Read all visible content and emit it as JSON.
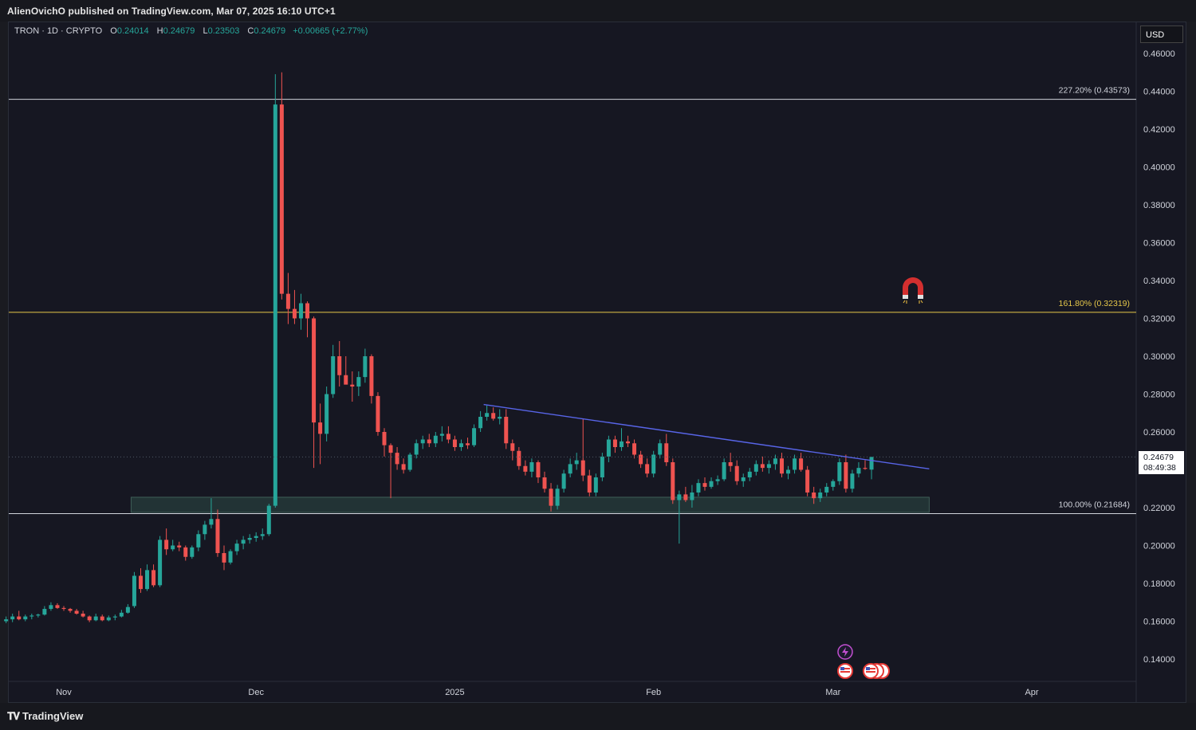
{
  "header": {
    "published": "AlienOvichO published on TradingView.com, Mar 07, 2025 16:10 UTC+1"
  },
  "legend": {
    "symbol": "TRON · 1D · CRYPTO",
    "o_label": "O",
    "o_value": "0.24014",
    "h_label": "H",
    "h_value": "0.24679",
    "l_label": "L",
    "l_value": "0.23503",
    "c_label": "C",
    "c_value": "0.24679",
    "change": "+0.00665 (+2.77%)"
  },
  "currency": "USD",
  "last_price": {
    "price": "0.24679",
    "countdown": "08:49:38"
  },
  "footer": {
    "brand": "TradingView"
  },
  "colors": {
    "up": "#26a69a",
    "down": "#ef5350",
    "fib_main": "#e6c84a",
    "fib_other": "#d1d4dc",
    "trendline": "#5865e8",
    "zone": "#2e4a45"
  },
  "icons": [
    "magnet-icon",
    "lightning-icon",
    "us-flag-icon"
  ],
  "chart_data": {
    "type": "candlestick",
    "y_axis": {
      "min": 0.13,
      "max": 0.465,
      "ticks": [
        "0.14000",
        "0.16000",
        "0.18000",
        "0.20000",
        "0.22000",
        "0.24000",
        "0.26000",
        "0.28000",
        "0.30000",
        "0.32000",
        "0.34000",
        "0.36000",
        "0.38000",
        "0.40000",
        "0.42000",
        "0.44000",
        "0.46000"
      ]
    },
    "x_axis": {
      "labels": [
        {
          "text": "Nov",
          "day": 0
        },
        {
          "text": "Dec",
          "day": 30
        },
        {
          "text": "2025",
          "day": 61
        },
        {
          "text": "Feb",
          "day": 92
        },
        {
          "text": "Mar",
          "day": 120
        },
        {
          "text": "Apr",
          "day": 151
        }
      ]
    },
    "fib_levels": [
      {
        "label": "227.20% (0.43573)",
        "value": 0.43573,
        "color": "#d1d4dc"
      },
      {
        "label": "161.80% (0.32319)",
        "value": 0.32319,
        "color": "#e6c84a"
      },
      {
        "label": "100.00% (0.21684)",
        "value": 0.21684,
        "color": "#d1d4dc"
      }
    ],
    "support_zone": {
      "from_day": 10.5,
      "to_day": 135,
      "low": 0.2175,
      "high": 0.2255
    },
    "trendline": {
      "from_day": 65.5,
      "from_value": 0.2745,
      "to_day": 135,
      "to_value": 0.2405
    },
    "last_price_value": 0.24679,
    "candles": [
      [
        -9,
        0.16,
        0.1625,
        0.159,
        0.161
      ],
      [
        -8,
        0.161,
        0.164,
        0.1595,
        0.1625
      ],
      [
        -7,
        0.1625,
        0.1655,
        0.1605,
        0.161
      ],
      [
        -6,
        0.161,
        0.1635,
        0.16,
        0.1625
      ],
      [
        -5,
        0.1625,
        0.164,
        0.161,
        0.163
      ],
      [
        -4,
        0.163,
        0.164,
        0.162,
        0.1635
      ],
      [
        -3,
        0.1635,
        0.168,
        0.163,
        0.1665
      ],
      [
        -2,
        0.1665,
        0.17,
        0.1655,
        0.1685
      ],
      [
        -1,
        0.1685,
        0.1695,
        0.1665,
        0.167
      ],
      [
        0,
        0.167,
        0.168,
        0.1655,
        0.1665
      ],
      [
        1,
        0.1665,
        0.167,
        0.1645,
        0.1655
      ],
      [
        2,
        0.1655,
        0.1665,
        0.1635,
        0.164
      ],
      [
        3,
        0.164,
        0.1655,
        0.162,
        0.1625
      ],
      [
        4,
        0.1625,
        0.163,
        0.1595,
        0.1605
      ],
      [
        5,
        0.1605,
        0.164,
        0.16,
        0.1625
      ],
      [
        6,
        0.1625,
        0.1635,
        0.16,
        0.1605
      ],
      [
        7,
        0.1605,
        0.163,
        0.16,
        0.162
      ],
      [
        8,
        0.162,
        0.1635,
        0.1605,
        0.1625
      ],
      [
        9,
        0.1625,
        0.166,
        0.162,
        0.1645
      ],
      [
        10,
        0.1645,
        0.169,
        0.164,
        0.1675
      ],
      [
        11,
        0.168,
        0.186,
        0.167,
        0.184
      ],
      [
        12,
        0.184,
        0.188,
        0.175,
        0.177
      ],
      [
        13,
        0.177,
        0.19,
        0.176,
        0.187
      ],
      [
        14,
        0.187,
        0.19,
        0.178,
        0.179
      ],
      [
        15,
        0.179,
        0.205,
        0.178,
        0.203
      ],
      [
        16,
        0.203,
        0.209,
        0.195,
        0.198
      ],
      [
        17,
        0.198,
        0.203,
        0.197,
        0.2
      ],
      [
        18,
        0.2,
        0.202,
        0.197,
        0.199
      ],
      [
        19,
        0.199,
        0.2,
        0.192,
        0.194
      ],
      [
        20,
        0.194,
        0.2,
        0.193,
        0.199
      ],
      [
        21,
        0.199,
        0.208,
        0.197,
        0.206
      ],
      [
        22,
        0.206,
        0.213,
        0.203,
        0.211
      ],
      [
        23,
        0.211,
        0.225,
        0.209,
        0.214
      ],
      [
        24,
        0.214,
        0.219,
        0.194,
        0.196
      ],
      [
        25,
        0.196,
        0.2,
        0.187,
        0.191
      ],
      [
        26,
        0.191,
        0.198,
        0.19,
        0.197
      ],
      [
        27,
        0.197,
        0.203,
        0.195,
        0.201
      ],
      [
        28,
        0.201,
        0.205,
        0.198,
        0.203
      ],
      [
        29,
        0.203,
        0.206,
        0.201,
        0.204
      ],
      [
        30,
        0.204,
        0.207,
        0.202,
        0.205
      ],
      [
        31,
        0.205,
        0.209,
        0.203,
        0.206
      ],
      [
        32,
        0.206,
        0.222,
        0.205,
        0.221
      ],
      [
        33,
        0.221,
        0.449,
        0.22,
        0.433
      ],
      [
        34,
        0.433,
        0.45,
        0.33,
        0.333
      ],
      [
        35,
        0.333,
        0.344,
        0.317,
        0.325
      ],
      [
        36,
        0.325,
        0.335,
        0.317,
        0.32
      ],
      [
        37,
        0.32,
        0.333,
        0.314,
        0.328
      ],
      [
        38,
        0.328,
        0.329,
        0.31,
        0.32
      ],
      [
        39,
        0.32,
        0.321,
        0.241,
        0.265
      ],
      [
        40,
        0.265,
        0.275,
        0.243,
        0.259
      ],
      [
        41,
        0.259,
        0.284,
        0.255,
        0.28
      ],
      [
        42,
        0.28,
        0.306,
        0.278,
        0.3
      ],
      [
        43,
        0.3,
        0.308,
        0.284,
        0.29
      ],
      [
        44,
        0.29,
        0.3,
        0.287,
        0.285
      ],
      [
        45,
        0.285,
        0.292,
        0.276,
        0.284
      ],
      [
        46,
        0.284,
        0.292,
        0.279,
        0.289
      ],
      [
        47,
        0.289,
        0.304,
        0.286,
        0.3
      ],
      [
        48,
        0.3,
        0.301,
        0.275,
        0.279
      ],
      [
        49,
        0.279,
        0.281,
        0.258,
        0.26
      ],
      [
        50,
        0.26,
        0.262,
        0.247,
        0.253
      ],
      [
        51,
        0.253,
        0.254,
        0.225,
        0.249
      ],
      [
        52,
        0.249,
        0.252,
        0.24,
        0.243
      ],
      [
        53,
        0.243,
        0.246,
        0.238,
        0.24
      ],
      [
        54,
        0.24,
        0.249,
        0.239,
        0.248
      ],
      [
        55,
        0.248,
        0.256,
        0.246,
        0.254
      ],
      [
        56,
        0.254,
        0.258,
        0.251,
        0.256
      ],
      [
        57,
        0.256,
        0.259,
        0.252,
        0.254
      ],
      [
        58,
        0.254,
        0.26,
        0.252,
        0.258
      ],
      [
        59,
        0.258,
        0.263,
        0.255,
        0.259
      ],
      [
        60,
        0.259,
        0.263,
        0.254,
        0.256
      ],
      [
        61,
        0.256,
        0.258,
        0.25,
        0.252
      ],
      [
        62,
        0.252,
        0.256,
        0.25,
        0.254
      ],
      [
        63,
        0.254,
        0.257,
        0.251,
        0.253
      ],
      [
        64,
        0.253,
        0.264,
        0.252,
        0.262
      ],
      [
        65,
        0.262,
        0.271,
        0.26,
        0.268
      ],
      [
        66,
        0.268,
        0.274,
        0.266,
        0.27
      ],
      [
        67,
        0.27,
        0.273,
        0.266,
        0.267
      ],
      [
        68,
        0.267,
        0.272,
        0.264,
        0.268
      ],
      [
        69,
        0.268,
        0.272,
        0.251,
        0.254
      ],
      [
        70,
        0.254,
        0.256,
        0.245,
        0.25
      ],
      [
        71,
        0.25,
        0.252,
        0.24,
        0.242
      ],
      [
        72,
        0.242,
        0.245,
        0.237,
        0.239
      ],
      [
        73,
        0.239,
        0.246,
        0.236,
        0.244
      ],
      [
        74,
        0.244,
        0.245,
        0.233,
        0.236
      ],
      [
        75,
        0.236,
        0.239,
        0.228,
        0.23
      ],
      [
        76,
        0.23,
        0.233,
        0.218,
        0.221
      ],
      [
        77,
        0.221,
        0.232,
        0.219,
        0.23
      ],
      [
        78,
        0.23,
        0.24,
        0.228,
        0.238
      ],
      [
        79,
        0.238,
        0.246,
        0.236,
        0.243
      ],
      [
        80,
        0.243,
        0.249,
        0.24,
        0.245
      ],
      [
        81,
        0.245,
        0.267,
        0.234,
        0.237
      ],
      [
        82,
        0.237,
        0.24,
        0.226,
        0.228
      ],
      [
        83,
        0.228,
        0.238,
        0.226,
        0.236
      ],
      [
        84,
        0.236,
        0.249,
        0.234,
        0.247
      ],
      [
        85,
        0.247,
        0.258,
        0.244,
        0.256
      ],
      [
        86,
        0.256,
        0.258,
        0.249,
        0.252
      ],
      [
        87,
        0.252,
        0.262,
        0.25,
        0.255
      ],
      [
        88,
        0.255,
        0.258,
        0.252,
        0.254
      ],
      [
        89,
        0.254,
        0.256,
        0.246,
        0.248
      ],
      [
        90,
        0.248,
        0.25,
        0.241,
        0.243
      ],
      [
        91,
        0.243,
        0.246,
        0.236,
        0.238
      ],
      [
        92,
        0.238,
        0.25,
        0.236,
        0.248
      ],
      [
        93,
        0.248,
        0.256,
        0.246,
        0.254
      ],
      [
        94,
        0.254,
        0.259,
        0.242,
        0.244
      ],
      [
        95,
        0.244,
        0.246,
        0.222,
        0.224
      ],
      [
        96,
        0.224,
        0.229,
        0.201,
        0.227
      ],
      [
        97,
        0.227,
        0.231,
        0.223,
        0.224
      ],
      [
        98,
        0.224,
        0.232,
        0.22,
        0.228
      ],
      [
        99,
        0.228,
        0.235,
        0.226,
        0.233
      ],
      [
        100,
        0.233,
        0.236,
        0.229,
        0.231
      ],
      [
        101,
        0.231,
        0.236,
        0.23,
        0.234
      ],
      [
        102,
        0.234,
        0.237,
        0.232,
        0.235
      ],
      [
        103,
        0.235,
        0.246,
        0.234,
        0.244
      ],
      [
        104,
        0.244,
        0.249,
        0.239,
        0.242
      ],
      [
        105,
        0.242,
        0.245,
        0.232,
        0.234
      ],
      [
        106,
        0.234,
        0.238,
        0.231,
        0.236
      ],
      [
        107,
        0.236,
        0.241,
        0.234,
        0.239
      ],
      [
        108,
        0.239,
        0.245,
        0.237,
        0.243
      ],
      [
        109,
        0.243,
        0.247,
        0.239,
        0.241
      ],
      [
        110,
        0.241,
        0.245,
        0.238,
        0.243
      ],
      [
        111,
        0.243,
        0.248,
        0.24,
        0.246
      ],
      [
        112,
        0.246,
        0.249,
        0.236,
        0.238
      ],
      [
        113,
        0.238,
        0.242,
        0.235,
        0.24
      ],
      [
        114,
        0.24,
        0.248,
        0.238,
        0.246
      ],
      [
        115,
        0.246,
        0.249,
        0.239,
        0.24
      ],
      [
        116,
        0.24,
        0.242,
        0.226,
        0.228
      ],
      [
        117,
        0.228,
        0.231,
        0.222,
        0.225
      ],
      [
        118,
        0.225,
        0.23,
        0.223,
        0.228
      ],
      [
        119,
        0.228,
        0.233,
        0.226,
        0.231
      ],
      [
        120,
        0.231,
        0.235,
        0.229,
        0.234
      ],
      [
        121,
        0.234,
        0.246,
        0.232,
        0.244
      ],
      [
        122,
        0.244,
        0.248,
        0.228,
        0.23
      ],
      [
        123,
        0.23,
        0.24,
        0.228,
        0.238
      ],
      [
        124,
        0.238,
        0.244,
        0.236,
        0.241
      ],
      [
        125,
        0.241,
        0.245,
        0.24,
        0.2405
      ],
      [
        126,
        0.2401,
        0.2468,
        0.235,
        0.2468
      ]
    ]
  }
}
